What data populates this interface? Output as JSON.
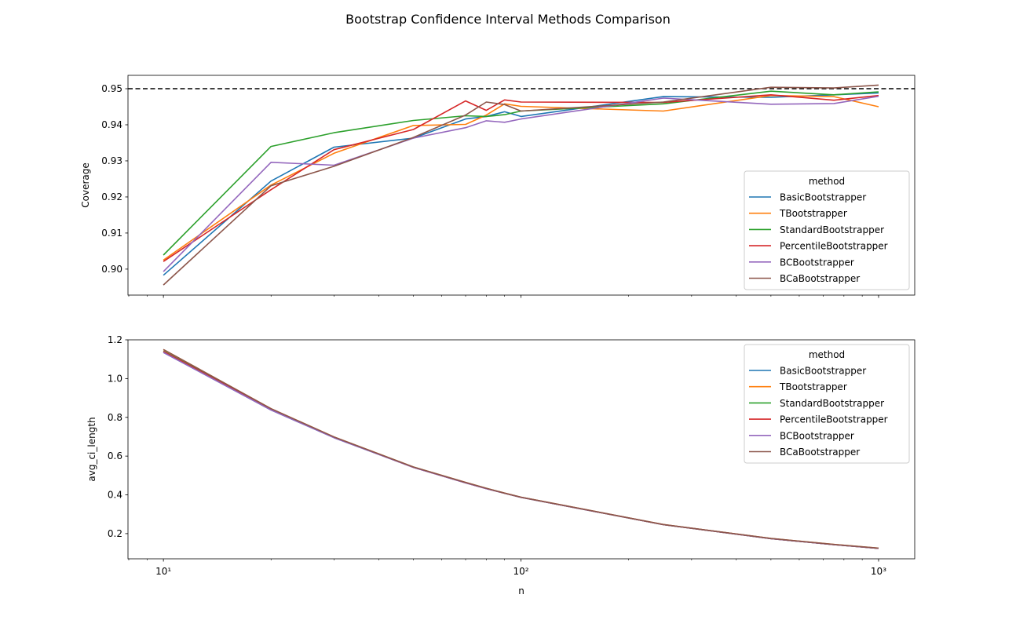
{
  "suptitle": "Bootstrap Confidence Interval Methods Comparison",
  "chart_data": [
    {
      "type": "line",
      "title": "",
      "xlabel": "",
      "ylabel": "Coverage",
      "xscale": "log",
      "xlim": [
        7.96,
        1262
      ],
      "ylim": [
        0.8928,
        0.9537
      ],
      "xticks": [
        10,
        100,
        1000
      ],
      "xtick_labels_visible": false,
      "yticks": [
        0.9,
        0.91,
        0.92,
        0.93,
        0.94,
        0.95
      ],
      "ytick_labels": [
        "0.90",
        "0.91",
        "0.92",
        "0.93",
        "0.94",
        "0.95"
      ],
      "reference_line": {
        "y": 0.95,
        "style": "dashed",
        "color": "#000000"
      },
      "grid": false,
      "legend": {
        "title": "method",
        "placement": "lower right"
      },
      "x": [
        10,
        20,
        30,
        50,
        70,
        80,
        90,
        100,
        250,
        500,
        750,
        1000
      ],
      "series": [
        {
          "name": "BasicBootstrapper",
          "color": "#1f77b4",
          "values": [
            0.8983,
            0.9244,
            0.9338,
            0.9363,
            0.9416,
            0.9423,
            0.9436,
            0.9423,
            0.9478,
            0.9476,
            0.9483,
            0.9488
          ]
        },
        {
          "name": "TBootstrapper",
          "color": "#ff7f0e",
          "values": [
            0.9025,
            0.9233,
            0.9321,
            0.9398,
            0.9401,
            0.9427,
            0.9458,
            0.9451,
            0.9438,
            0.9481,
            0.9478,
            0.945
          ]
        },
        {
          "name": "StandardBootstrapper",
          "color": "#2ca02c",
          "values": [
            0.9039,
            0.934,
            0.9378,
            0.9412,
            0.9425,
            0.9423,
            0.9428,
            0.9438,
            0.9458,
            0.9493,
            0.9483,
            0.9491
          ]
        },
        {
          "name": "PercentileBootstrapper",
          "color": "#d62728",
          "values": [
            0.9021,
            0.922,
            0.9331,
            0.9387,
            0.9466,
            0.944,
            0.9469,
            0.9463,
            0.9462,
            0.9483,
            0.9468,
            0.9481
          ]
        },
        {
          "name": "BCBootstrapper",
          "color": "#9467bd",
          "values": [
            0.8993,
            0.9296,
            0.9288,
            0.9363,
            0.9392,
            0.9411,
            0.9407,
            0.9416,
            0.9474,
            0.9457,
            0.9459,
            0.9479
          ]
        },
        {
          "name": "BCaBootstrapper",
          "color": "#8c564b",
          "values": [
            0.8956,
            0.9231,
            0.9285,
            0.9365,
            0.9427,
            0.9463,
            0.9456,
            0.9438,
            0.9463,
            0.9504,
            0.9502,
            0.951
          ]
        }
      ]
    },
    {
      "type": "line",
      "title": "",
      "xlabel": "n",
      "ylabel": "avg_ci_length",
      "xscale": "log",
      "xlim": [
        7.96,
        1262
      ],
      "ylim": [
        0.07,
        1.2
      ],
      "xticks": [
        10,
        100,
        1000
      ],
      "xtick_labels": [
        "10¹",
        "10²",
        "10³"
      ],
      "yticks": [
        0.2,
        0.4,
        0.6,
        0.8,
        1.0,
        1.2
      ],
      "ytick_labels": [
        "0.2",
        "0.4",
        "0.6",
        "0.8",
        "1.0",
        "1.2"
      ],
      "grid": false,
      "legend": {
        "title": "method",
        "placement": "upper right"
      },
      "x": [
        10,
        20,
        30,
        50,
        70,
        80,
        90,
        100,
        250,
        500,
        750,
        1000
      ],
      "series": [
        {
          "name": "BasicBootstrapper",
          "color": "#1f77b4",
          "values": [
            1.135,
            0.838,
            0.695,
            0.542,
            0.462,
            0.432,
            0.408,
            0.387,
            0.246,
            0.174,
            0.143,
            0.124
          ]
        },
        {
          "name": "TBootstrapper",
          "color": "#ff7f0e",
          "values": [
            1.15,
            0.845,
            0.699,
            0.544,
            0.464,
            0.434,
            0.409,
            0.388,
            0.247,
            0.175,
            0.144,
            0.125
          ]
        },
        {
          "name": "StandardBootstrapper",
          "color": "#2ca02c",
          "values": [
            1.142,
            0.842,
            0.697,
            0.543,
            0.463,
            0.433,
            0.408,
            0.387,
            0.246,
            0.174,
            0.143,
            0.124
          ]
        },
        {
          "name": "PercentileBootstrapper",
          "color": "#d62728",
          "values": [
            1.14,
            0.84,
            0.696,
            0.542,
            0.462,
            0.432,
            0.408,
            0.387,
            0.246,
            0.174,
            0.143,
            0.124
          ]
        },
        {
          "name": "BCBootstrapper",
          "color": "#9467bd",
          "values": [
            1.135,
            0.838,
            0.695,
            0.542,
            0.462,
            0.432,
            0.408,
            0.387,
            0.246,
            0.174,
            0.143,
            0.124
          ]
        },
        {
          "name": "BCaBootstrapper",
          "color": "#8c564b",
          "values": [
            1.15,
            0.845,
            0.699,
            0.544,
            0.464,
            0.434,
            0.409,
            0.388,
            0.247,
            0.175,
            0.144,
            0.125
          ]
        }
      ]
    }
  ]
}
